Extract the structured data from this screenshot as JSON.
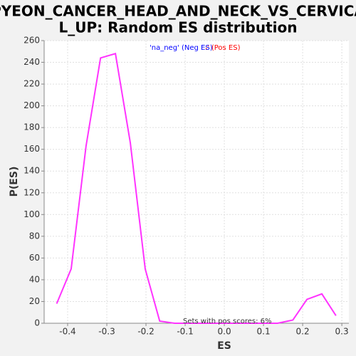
{
  "chart_data": {
    "type": "line",
    "title": [
      "PYEON_CANCER_HEAD_AND_NECK_VS_CERVICA",
      "L_UP: Random ES distribution"
    ],
    "xlabel": "ES",
    "ylabel": "P(ES)",
    "legend": [
      {
        "text": "'na_pos' (Pos ES)",
        "color": "#ff0000"
      },
      {
        "text": "'na_neg' (Neg ES)",
        "color": "#0000ff"
      }
    ],
    "annotation": "Sets with pos scores: 6%",
    "x": [
      -0.428,
      -0.391,
      -0.353,
      -0.316,
      -0.278,
      -0.24,
      -0.202,
      -0.165,
      -0.127,
      -0.09,
      -0.051,
      -0.015,
      0.024,
      0.062,
      0.098,
      0.136,
      0.175,
      0.211,
      0.249,
      0.285
    ],
    "series": [
      {
        "name": "P(ES)",
        "color": "#ff33ff",
        "values": [
          18,
          50,
          163,
          244,
          248,
          166,
          50,
          2,
          0,
          0,
          0,
          0,
          0,
          0,
          0,
          0,
          3,
          22,
          27,
          7
        ]
      }
    ],
    "xlim": [
      -0.46,
      0.318
    ],
    "ylim": [
      0,
      260
    ],
    "xticks": [
      -0.4,
      -0.3,
      -0.2,
      -0.1,
      {
        "value": 0,
        "label": "0.0"
      },
      0.1,
      0.2,
      0.3
    ],
    "yticks": [
      0,
      20,
      40,
      60,
      80,
      100,
      120,
      140,
      160,
      180,
      200,
      220,
      240,
      260
    ],
    "grid": true
  }
}
